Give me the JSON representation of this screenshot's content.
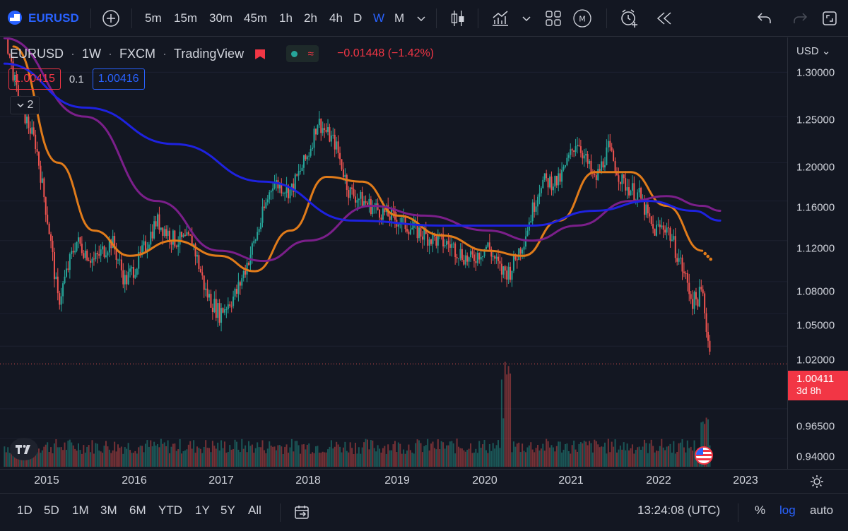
{
  "toolbar": {
    "symbol": "EURUSD",
    "intervals": [
      "5m",
      "15m",
      "30m",
      "45m",
      "1h",
      "2h",
      "4h",
      "D",
      "W",
      "M"
    ],
    "active_interval": "W"
  },
  "legend": {
    "symbol": "EURUSD",
    "interval": "1W",
    "exchange": "FXCM",
    "source": "TradingView",
    "change": "−0.01448 (−1.42%)",
    "bid": "1.00415",
    "spread": "0.1",
    "ask": "1.00416",
    "indicators_count": "2"
  },
  "price_axis": {
    "currency": "USD",
    "ticks": [
      "1.30000",
      "1.25000",
      "1.20000",
      "1.16000",
      "1.12000",
      "1.08000",
      "1.05000",
      "1.02000",
      "0.96500",
      "0.94000"
    ],
    "last_price": "1.00411",
    "countdown": "3d 8h"
  },
  "time_axis": {
    "ticks": [
      "2015",
      "2016",
      "2017",
      "2018",
      "2019",
      "2020",
      "2021",
      "2022",
      "2023"
    ]
  },
  "bottom": {
    "ranges": [
      "1D",
      "5D",
      "1M",
      "3M",
      "6M",
      "YTD",
      "1Y",
      "5Y",
      "All"
    ],
    "clock": "13:24:08 (UTC)",
    "percent": "%",
    "log": "log",
    "auto": "auto"
  },
  "colors": {
    "up": "#26a69a",
    "down": "#ef5350",
    "ma_orange": "#e07b1a",
    "ma_purple": "#7b1f8a",
    "ma_blue": "#1e22e0",
    "accent": "#2962ff"
  },
  "chart_data": {
    "type": "candlestick",
    "title": "EURUSD 1W FXCM",
    "ylabel": "USD",
    "ylim": [
      0.93,
      1.32
    ],
    "x_range": [
      "2014-06",
      "2023-04"
    ],
    "price_path": [
      {
        "t": 2014.6,
        "v": 1.35
      },
      {
        "t": 2014.75,
        "v": 1.27
      },
      {
        "t": 2014.95,
        "v": 1.22
      },
      {
        "t": 2015.1,
        "v": 1.13
      },
      {
        "t": 2015.2,
        "v": 1.06
      },
      {
        "t": 2015.4,
        "v": 1.12
      },
      {
        "t": 2015.6,
        "v": 1.1
      },
      {
        "t": 2015.8,
        "v": 1.12
      },
      {
        "t": 2015.95,
        "v": 1.08
      },
      {
        "t": 2016.1,
        "v": 1.1
      },
      {
        "t": 2016.3,
        "v": 1.14
      },
      {
        "t": 2016.5,
        "v": 1.12
      },
      {
        "t": 2016.7,
        "v": 1.12
      },
      {
        "t": 2016.85,
        "v": 1.07
      },
      {
        "t": 2017.0,
        "v": 1.05
      },
      {
        "t": 2017.2,
        "v": 1.07
      },
      {
        "t": 2017.4,
        "v": 1.12
      },
      {
        "t": 2017.6,
        "v": 1.18
      },
      {
        "t": 2017.8,
        "v": 1.17
      },
      {
        "t": 2018.0,
        "v": 1.21
      },
      {
        "t": 2018.1,
        "v": 1.245
      },
      {
        "t": 2018.3,
        "v": 1.22
      },
      {
        "t": 2018.45,
        "v": 1.17
      },
      {
        "t": 2018.6,
        "v": 1.16
      },
      {
        "t": 2018.8,
        "v": 1.15
      },
      {
        "t": 2019.0,
        "v": 1.14
      },
      {
        "t": 2019.3,
        "v": 1.125
      },
      {
        "t": 2019.6,
        "v": 1.115
      },
      {
        "t": 2019.8,
        "v": 1.1
      },
      {
        "t": 2020.0,
        "v": 1.115
      },
      {
        "t": 2020.15,
        "v": 1.09
      },
      {
        "t": 2020.25,
        "v": 1.09
      },
      {
        "t": 2020.4,
        "v": 1.12
      },
      {
        "t": 2020.6,
        "v": 1.18
      },
      {
        "t": 2020.8,
        "v": 1.18
      },
      {
        "t": 2021.0,
        "v": 1.225
      },
      {
        "t": 2021.2,
        "v": 1.18
      },
      {
        "t": 2021.35,
        "v": 1.215
      },
      {
        "t": 2021.5,
        "v": 1.18
      },
      {
        "t": 2021.7,
        "v": 1.165
      },
      {
        "t": 2021.85,
        "v": 1.13
      },
      {
        "t": 2022.0,
        "v": 1.135
      },
      {
        "t": 2022.15,
        "v": 1.1
      },
      {
        "t": 2022.3,
        "v": 1.06
      },
      {
        "t": 2022.4,
        "v": 1.07
      },
      {
        "t": 2022.5,
        "v": 1.004
      }
    ],
    "series": [
      {
        "name": "MA orange",
        "points": [
          {
            "t": 2014.7,
            "v": 1.33
          },
          {
            "t": 2015.2,
            "v": 1.2
          },
          {
            "t": 2015.6,
            "v": 1.13
          },
          {
            "t": 2016.0,
            "v": 1.105
          },
          {
            "t": 2016.5,
            "v": 1.12
          },
          {
            "t": 2017.0,
            "v": 1.105
          },
          {
            "t": 2017.4,
            "v": 1.09
          },
          {
            "t": 2017.8,
            "v": 1.13
          },
          {
            "t": 2018.2,
            "v": 1.185
          },
          {
            "t": 2018.6,
            "v": 1.18
          },
          {
            "t": 2019.0,
            "v": 1.145
          },
          {
            "t": 2019.5,
            "v": 1.125
          },
          {
            "t": 2020.0,
            "v": 1.11
          },
          {
            "t": 2020.4,
            "v": 1.105
          },
          {
            "t": 2020.8,
            "v": 1.14
          },
          {
            "t": 2021.2,
            "v": 1.19
          },
          {
            "t": 2021.6,
            "v": 1.19
          },
          {
            "t": 2022.0,
            "v": 1.155
          },
          {
            "t": 2022.4,
            "v": 1.11
          }
        ]
      },
      {
        "name": "MA purple",
        "points": [
          {
            "t": 2014.6,
            "v": 1.34
          },
          {
            "t": 2015.5,
            "v": 1.25
          },
          {
            "t": 2016.3,
            "v": 1.16
          },
          {
            "t": 2017.0,
            "v": 1.11
          },
          {
            "t": 2017.5,
            "v": 1.1
          },
          {
            "t": 2018.0,
            "v": 1.12
          },
          {
            "t": 2018.7,
            "v": 1.155
          },
          {
            "t": 2019.3,
            "v": 1.145
          },
          {
            "t": 2020.0,
            "v": 1.13
          },
          {
            "t": 2020.5,
            "v": 1.12
          },
          {
            "t": 2021.0,
            "v": 1.135
          },
          {
            "t": 2021.6,
            "v": 1.16
          },
          {
            "t": 2022.0,
            "v": 1.165
          },
          {
            "t": 2022.4,
            "v": 1.155
          },
          {
            "t": 2022.6,
            "v": 1.15
          }
        ]
      },
      {
        "name": "MA blue",
        "points": [
          {
            "t": 2014.6,
            "v": 1.31
          },
          {
            "t": 2015.5,
            "v": 1.26
          },
          {
            "t": 2016.5,
            "v": 1.22
          },
          {
            "t": 2017.5,
            "v": 1.18
          },
          {
            "t": 2018.5,
            "v": 1.14
          },
          {
            "t": 2019.5,
            "v": 1.135
          },
          {
            "t": 2020.5,
            "v": 1.135
          },
          {
            "t": 2021.2,
            "v": 1.15
          },
          {
            "t": 2021.8,
            "v": 1.16
          },
          {
            "t": 2022.3,
            "v": 1.15
          },
          {
            "t": 2022.6,
            "v": 1.14
          }
        ]
      }
    ],
    "volume_spike": {
      "t": 2020.2
    }
  }
}
